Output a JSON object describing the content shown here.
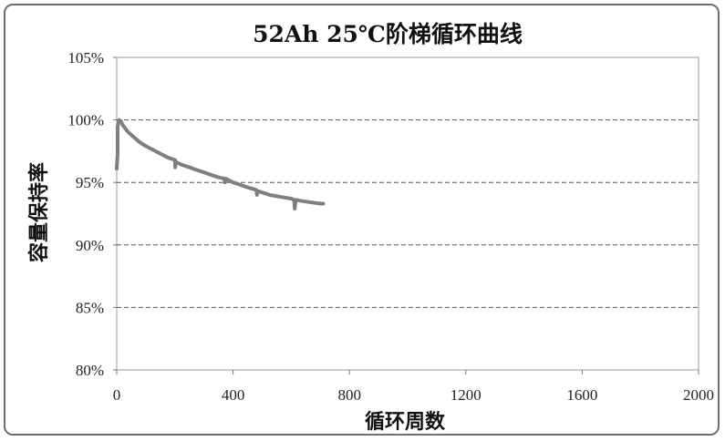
{
  "chart_data": {
    "type": "line",
    "title": "52Ah 25℃阶梯循环曲线",
    "xlabel": "循环周数",
    "ylabel": "容量保持率",
    "xlim": [
      0,
      2000
    ],
    "ylim": [
      80,
      105
    ],
    "x_ticks": [
      0,
      400,
      800,
      1200,
      1600,
      2000
    ],
    "y_ticks": [
      "80%",
      "85%",
      "90%",
      "95%",
      "100%",
      "105%"
    ],
    "y_tick_values": [
      80,
      85,
      90,
      95,
      100,
      105
    ],
    "grid": "horizontal dashed",
    "line_color": "#7f7f7f",
    "series": [
      {
        "x": [
          0,
          3,
          3,
          8,
          14,
          20,
          30,
          40,
          60,
          80,
          100,
          125,
          150,
          175,
          200,
          201,
          203,
          205,
          225,
          250,
          275,
          300,
          325,
          350,
          370,
          372,
          375,
          400,
          425,
          450,
          480,
          482,
          485,
          500,
          525,
          550,
          575,
          600,
          610,
          612,
          615,
          640,
          670,
          700,
          710
        ],
        "y": [
          96.1,
          97.3,
          99.5,
          100.0,
          99.9,
          99.6,
          99.3,
          99.0,
          98.6,
          98.2,
          97.9,
          97.6,
          97.3,
          97.0,
          96.8,
          96.2,
          96.7,
          96.6,
          96.4,
          96.2,
          96.0,
          95.8,
          95.6,
          95.4,
          95.3,
          95.0,
          95.3,
          95.0,
          94.8,
          94.6,
          94.4,
          94.0,
          94.3,
          94.2,
          94.0,
          93.9,
          93.8,
          93.7,
          93.6,
          92.9,
          93.6,
          93.5,
          93.4,
          93.3,
          93.3
        ]
      }
    ]
  }
}
